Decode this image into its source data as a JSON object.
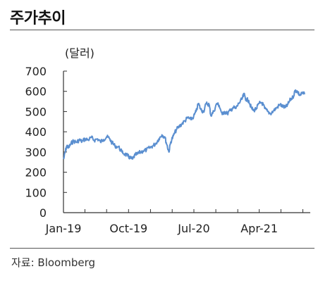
{
  "header": {
    "title": "주가추이"
  },
  "footer": {
    "source": "자료: Bloomberg"
  },
  "chart_data": {
    "type": "line",
    "title": "주가추이",
    "unit_label": "(달러)",
    "xlabel": "",
    "ylabel": "(달러)",
    "ylim": [
      0,
      700
    ],
    "yticks": [
      0,
      100,
      200,
      300,
      400,
      500,
      600,
      700
    ],
    "xlim": [
      "2019-01",
      "2021-11"
    ],
    "xticks": [
      "Jan-19",
      "Oct-19",
      "Jul-20",
      "Apr-21"
    ],
    "grid": false,
    "legend": "none",
    "line_color": "#5b8fd0",
    "series": [
      {
        "name": "",
        "points": [
          [
            "2019-01-02",
            265
          ],
          [
            "2019-01-08",
            300
          ],
          [
            "2019-01-15",
            330
          ],
          [
            "2019-01-22",
            320
          ],
          [
            "2019-02-01",
            340
          ],
          [
            "2019-02-12",
            355
          ],
          [
            "2019-02-25",
            348
          ],
          [
            "2019-03-08",
            360
          ],
          [
            "2019-03-20",
            352
          ],
          [
            "2019-04-02",
            365
          ],
          [
            "2019-04-15",
            360
          ],
          [
            "2019-04-28",
            372
          ],
          [
            "2019-05-10",
            358
          ],
          [
            "2019-05-24",
            365
          ],
          [
            "2019-06-05",
            350
          ],
          [
            "2019-06-18",
            362
          ],
          [
            "2019-07-01",
            375
          ],
          [
            "2019-07-12",
            368
          ],
          [
            "2019-07-24",
            345
          ],
          [
            "2019-08-05",
            330
          ],
          [
            "2019-08-20",
            325
          ],
          [
            "2019-09-03",
            300
          ],
          [
            "2019-09-16",
            290
          ],
          [
            "2019-09-28",
            280
          ],
          [
            "2019-10-08",
            270
          ],
          [
            "2019-10-18",
            265
          ],
          [
            "2019-10-28",
            285
          ],
          [
            "2019-11-08",
            290
          ],
          [
            "2019-11-20",
            300
          ],
          [
            "2019-12-02",
            305
          ],
          [
            "2019-12-15",
            310
          ],
          [
            "2019-12-28",
            320
          ],
          [
            "2020-01-10",
            330
          ],
          [
            "2020-01-22",
            340
          ],
          [
            "2020-02-05",
            365
          ],
          [
            "2020-02-18",
            385
          ],
          [
            "2020-03-01",
            375
          ],
          [
            "2020-03-10",
            335
          ],
          [
            "2020-03-18",
            300
          ],
          [
            "2020-03-26",
            350
          ],
          [
            "2020-04-06",
            380
          ],
          [
            "2020-04-18",
            410
          ],
          [
            "2020-04-30",
            425
          ],
          [
            "2020-05-12",
            440
          ],
          [
            "2020-05-25",
            455
          ],
          [
            "2020-06-05",
            470
          ],
          [
            "2020-06-18",
            460
          ],
          [
            "2020-06-30",
            475
          ],
          [
            "2020-07-10",
            500
          ],
          [
            "2020-07-20",
            540
          ],
          [
            "2020-07-30",
            510
          ],
          [
            "2020-08-10",
            500
          ],
          [
            "2020-08-22",
            540
          ],
          [
            "2020-09-03",
            535
          ],
          [
            "2020-09-10",
            480
          ],
          [
            "2020-09-22",
            500
          ],
          [
            "2020-10-05",
            540
          ],
          [
            "2020-10-15",
            530
          ],
          [
            "2020-10-28",
            485
          ],
          [
            "2020-11-06",
            500
          ],
          [
            "2020-11-18",
            490
          ],
          [
            "2020-12-01",
            505
          ],
          [
            "2020-12-12",
            520
          ],
          [
            "2020-12-24",
            515
          ],
          [
            "2021-01-05",
            540
          ],
          [
            "2021-01-18",
            560
          ],
          [
            "2021-01-27",
            585
          ],
          [
            "2021-02-05",
            560
          ],
          [
            "2021-02-16",
            555
          ],
          [
            "2021-02-26",
            520
          ],
          [
            "2021-03-08",
            505
          ],
          [
            "2021-03-20",
            515
          ],
          [
            "2021-04-01",
            540
          ],
          [
            "2021-04-12",
            545
          ],
          [
            "2021-04-24",
            515
          ],
          [
            "2021-05-06",
            500
          ],
          [
            "2021-05-18",
            490
          ],
          [
            "2021-06-01",
            505
          ],
          [
            "2021-06-14",
            520
          ],
          [
            "2021-06-28",
            535
          ],
          [
            "2021-07-08",
            525
          ],
          [
            "2021-07-20",
            520
          ],
          [
            "2021-07-30",
            535
          ],
          [
            "2021-08-10",
            560
          ],
          [
            "2021-08-20",
            570
          ],
          [
            "2021-08-30",
            605
          ],
          [
            "2021-09-08",
            600
          ],
          [
            "2021-09-18",
            580
          ],
          [
            "2021-09-28",
            590
          ],
          [
            "2021-10-08",
            585
          ]
        ]
      }
    ]
  }
}
